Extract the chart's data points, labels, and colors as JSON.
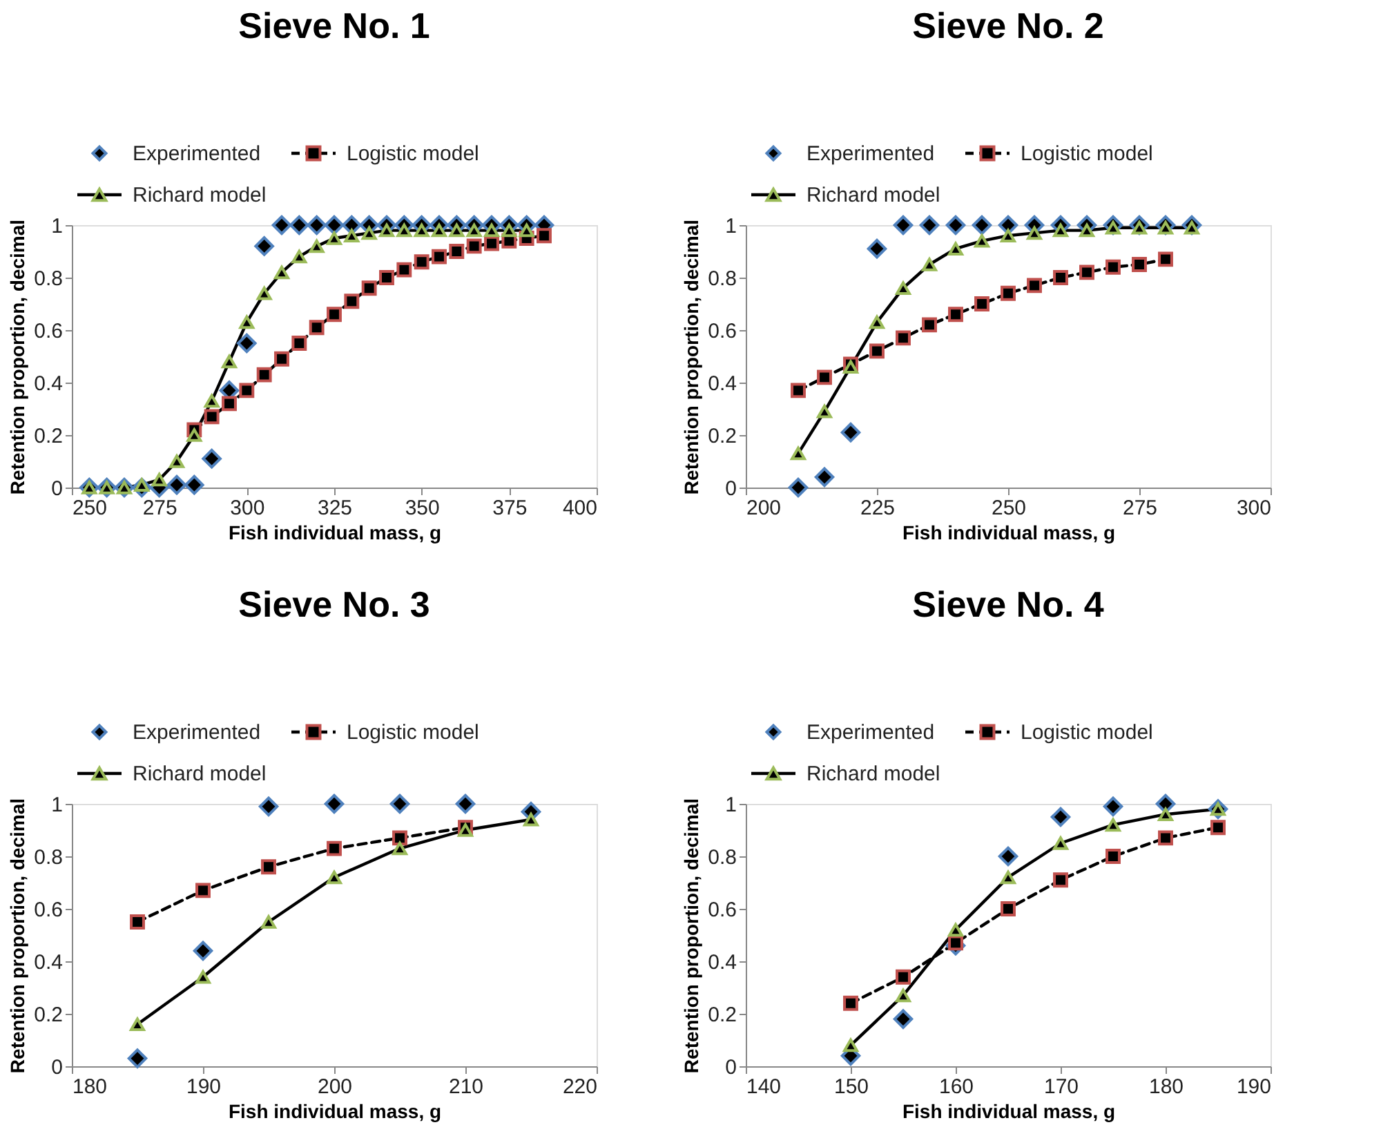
{
  "chart_data": [
    {
      "type": "line",
      "title": "Sieve No. 1",
      "xlabel": "Fish individual mass, g",
      "ylabel": "Retention proportion, decimal",
      "xlim": [
        250,
        400
      ],
      "xticks": [
        250,
        275,
        300,
        325,
        350,
        375,
        400
      ],
      "ylim": [
        0,
        1
      ],
      "yticks": [
        0,
        0.2,
        0.4,
        0.6,
        0.8,
        1
      ],
      "grid": false,
      "legend": "top",
      "series": [
        {
          "name": "Experimented",
          "type": "scatter",
          "marker": "diamond",
          "color": "#4f81bd",
          "x": [
            255,
            260,
            265,
            270,
            275,
            280,
            285,
            290,
            295,
            300,
            305,
            310,
            315,
            320,
            325,
            330,
            335,
            340,
            345,
            350,
            355,
            360,
            365,
            370,
            375,
            380,
            385
          ],
          "values": [
            0,
            0,
            0,
            0,
            0,
            0.01,
            0.01,
            0.11,
            0.37,
            0.55,
            0.92,
            1,
            1,
            1,
            1,
            1,
            1,
            1,
            1,
            1,
            1,
            1,
            1,
            1,
            1,
            1,
            1
          ]
        },
        {
          "name": "Logistic model",
          "type": "line",
          "marker": "square",
          "line_style": "dashed",
          "color": "#000000",
          "x": [
            285,
            290,
            295,
            300,
            305,
            310,
            315,
            320,
            325,
            330,
            335,
            340,
            345,
            350,
            355,
            360,
            365,
            370,
            375,
            380,
            385
          ],
          "values": [
            0.22,
            0.27,
            0.32,
            0.37,
            0.43,
            0.49,
            0.55,
            0.61,
            0.66,
            0.71,
            0.76,
            0.8,
            0.83,
            0.86,
            0.88,
            0.9,
            0.92,
            0.93,
            0.94,
            0.95,
            0.96
          ]
        },
        {
          "name": "Richard model",
          "type": "line",
          "marker": "triangle",
          "line_style": "solid",
          "color": "#000000",
          "x": [
            255,
            260,
            265,
            270,
            275,
            280,
            285,
            290,
            295,
            300,
            305,
            310,
            315,
            320,
            325,
            330,
            335,
            340,
            345,
            350,
            355,
            360,
            365,
            370,
            375,
            380
          ],
          "values": [
            0,
            0,
            0,
            0.01,
            0.03,
            0.1,
            0.2,
            0.33,
            0.48,
            0.63,
            0.74,
            0.82,
            0.88,
            0.92,
            0.95,
            0.96,
            0.97,
            0.98,
            0.98,
            0.98,
            0.98,
            0.98,
            0.98,
            0.98,
            0.98,
            0.98
          ]
        }
      ]
    },
    {
      "type": "line",
      "title": "Sieve No. 2",
      "xlabel": "Fish individual mass, g",
      "ylabel": "Retention proportion, decimal",
      "xlim": [
        200,
        300
      ],
      "xticks": [
        200,
        225,
        250,
        275,
        300
      ],
      "ylim": [
        0,
        1
      ],
      "yticks": [
        0,
        0.2,
        0.4,
        0.6,
        0.8,
        1
      ],
      "grid": false,
      "legend": "top",
      "series": [
        {
          "name": "Experimented",
          "type": "scatter",
          "marker": "diamond",
          "color": "#4f81bd",
          "x": [
            210,
            215,
            220,
            225,
            230,
            235,
            240,
            245,
            250,
            255,
            260,
            265,
            270,
            275,
            280,
            285
          ],
          "values": [
            0,
            0.04,
            0.21,
            0.91,
            1,
            1,
            1,
            1,
            1,
            1,
            1,
            1,
            1,
            1,
            1,
            1
          ]
        },
        {
          "name": "Logistic model",
          "type": "line",
          "marker": "square",
          "line_style": "dashed",
          "color": "#000000",
          "x": [
            210,
            215,
            220,
            225,
            230,
            235,
            240,
            245,
            250,
            255,
            260,
            265,
            270,
            275,
            280
          ],
          "values": [
            0.37,
            0.42,
            0.47,
            0.52,
            0.57,
            0.62,
            0.66,
            0.7,
            0.74,
            0.77,
            0.8,
            0.82,
            0.84,
            0.85,
            0.87
          ]
        },
        {
          "name": "Richard model",
          "type": "line",
          "marker": "triangle",
          "line_style": "solid",
          "color": "#000000",
          "x": [
            210,
            215,
            220,
            225,
            230,
            235,
            240,
            245,
            250,
            255,
            260,
            265,
            270,
            275,
            280,
            285
          ],
          "values": [
            0.13,
            0.29,
            0.46,
            0.63,
            0.76,
            0.85,
            0.91,
            0.94,
            0.96,
            0.97,
            0.98,
            0.98,
            0.99,
            0.99,
            0.99,
            0.99
          ]
        }
      ]
    },
    {
      "type": "line",
      "title": "Sieve No. 3",
      "xlabel": "Fish individual mass, g",
      "ylabel": "Retention proportion, decimal",
      "xlim": [
        180,
        220
      ],
      "xticks": [
        180,
        190,
        200,
        210,
        220
      ],
      "ylim": [
        0,
        1
      ],
      "yticks": [
        0,
        0.2,
        0.4,
        0.6,
        0.8,
        1
      ],
      "grid": false,
      "legend": "top",
      "series": [
        {
          "name": "Experimented",
          "type": "scatter",
          "marker": "diamond",
          "color": "#4f81bd",
          "x": [
            185,
            190,
            195,
            200,
            205,
            210,
            215
          ],
          "values": [
            0.03,
            0.44,
            0.99,
            1,
            1,
            1,
            0.97
          ]
        },
        {
          "name": "Logistic model",
          "type": "line",
          "marker": "square",
          "line_style": "dashed",
          "color": "#000000",
          "x": [
            185,
            190,
            195,
            200,
            205,
            210
          ],
          "values": [
            0.55,
            0.67,
            0.76,
            0.83,
            0.87,
            0.91
          ]
        },
        {
          "name": "Richard model",
          "type": "line",
          "marker": "triangle",
          "line_style": "solid",
          "color": "#000000",
          "x": [
            185,
            190,
            195,
            200,
            205,
            210,
            215
          ],
          "values": [
            0.16,
            0.34,
            0.55,
            0.72,
            0.83,
            0.9,
            0.94
          ]
        }
      ]
    },
    {
      "type": "line",
      "title": "Sieve No. 4",
      "xlabel": "Fish individual mass, g",
      "ylabel": "Retention proportion, decimal",
      "xlim": [
        140,
        190
      ],
      "xticks": [
        140,
        150,
        160,
        170,
        180,
        190
      ],
      "ylim": [
        0,
        1
      ],
      "yticks": [
        0,
        0.2,
        0.4,
        0.6,
        0.8,
        1
      ],
      "grid": false,
      "legend": "top",
      "series": [
        {
          "name": "Experimented",
          "type": "scatter",
          "marker": "diamond",
          "color": "#4f81bd",
          "x": [
            150,
            155,
            160,
            165,
            170,
            175,
            180,
            185
          ],
          "values": [
            0.04,
            0.18,
            0.46,
            0.8,
            0.95,
            0.99,
            1,
            0.98
          ]
        },
        {
          "name": "Logistic model",
          "type": "line",
          "marker": "square",
          "line_style": "dashed",
          "color": "#000000",
          "x": [
            150,
            155,
            160,
            165,
            170,
            175,
            180,
            185
          ],
          "values": [
            0.24,
            0.34,
            0.47,
            0.6,
            0.71,
            0.8,
            0.87,
            0.91
          ]
        },
        {
          "name": "Richard model",
          "type": "line",
          "marker": "triangle",
          "line_style": "solid",
          "color": "#000000",
          "x": [
            150,
            155,
            160,
            165,
            170,
            175,
            180,
            185
          ],
          "values": [
            0.08,
            0.27,
            0.52,
            0.72,
            0.85,
            0.92,
            0.96,
            0.98
          ]
        }
      ]
    }
  ]
}
